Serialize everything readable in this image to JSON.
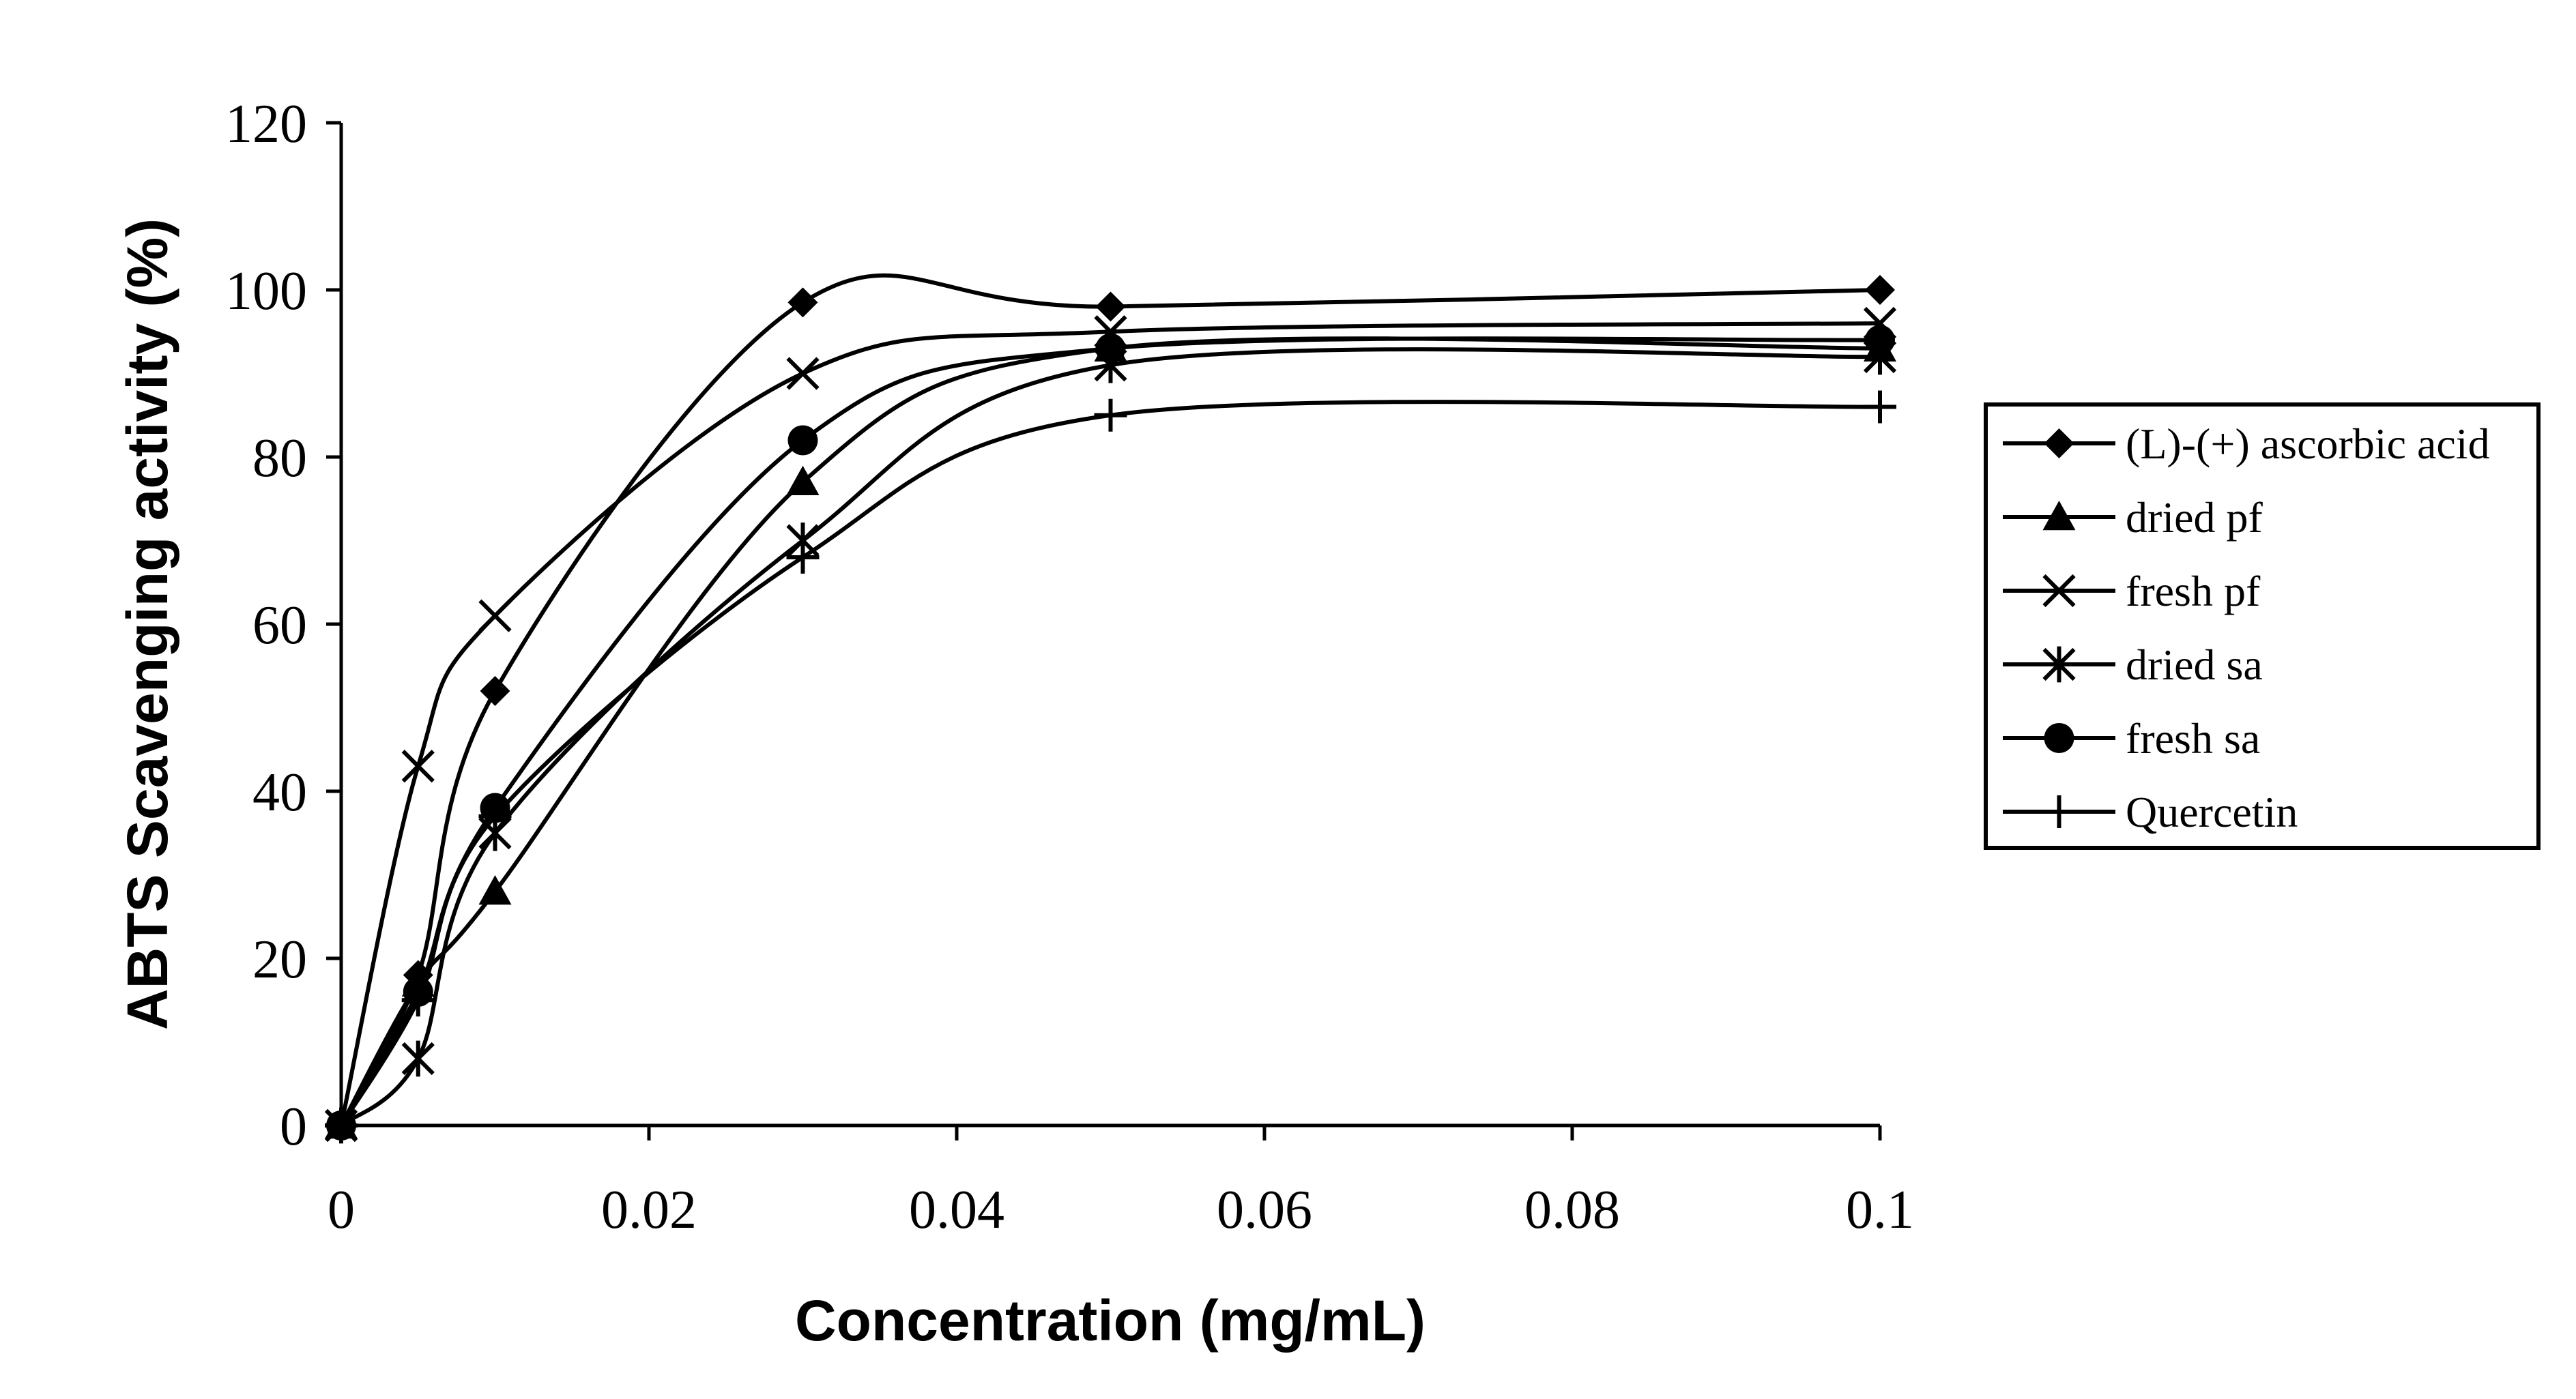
{
  "chart_data": {
    "type": "line",
    "title": "",
    "xlabel": "Concentration (mg/mL)",
    "ylabel": "ABTS Scavenging activity (%)",
    "xlim": [
      0,
      0.1
    ],
    "ylim": [
      0,
      120
    ],
    "x_ticks": [
      "0",
      "0.02",
      "0.04",
      "0.06",
      "0.08",
      "0.1"
    ],
    "y_ticks": [
      "0",
      "20",
      "40",
      "60",
      "80",
      "100",
      "120"
    ],
    "grid": false,
    "legend_position": "right",
    "x": [
      0,
      0.005,
      0.01,
      0.03,
      0.05,
      0.1
    ],
    "series": [
      {
        "name": "(L)-(+) ascorbic acid",
        "marker": "diamond",
        "values": [
          0,
          18,
          52,
          98.5,
          98,
          100
        ]
      },
      {
        "name": "dried pf",
        "marker": "triangle",
        "values": [
          0,
          17,
          28,
          77,
          93,
          93
        ]
      },
      {
        "name": "fresh pf",
        "marker": "x",
        "values": [
          0,
          43,
          61,
          90,
          95,
          96
        ]
      },
      {
        "name": "dried sa",
        "marker": "star",
        "values": [
          0,
          8,
          35,
          70,
          91,
          92
        ]
      },
      {
        "name": "fresh sa",
        "marker": "circle",
        "values": [
          0,
          16,
          38,
          82,
          93,
          94
        ]
      },
      {
        "name": "Quercetin",
        "marker": "plus",
        "values": [
          0,
          15,
          37,
          68,
          85,
          86
        ]
      }
    ]
  }
}
